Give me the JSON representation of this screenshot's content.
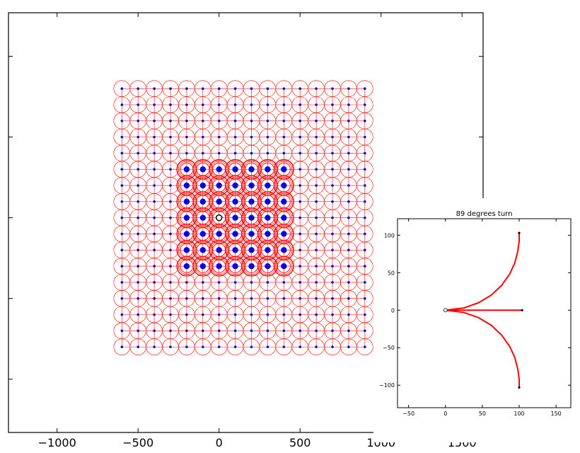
{
  "chart_data": [
    {
      "type": "line",
      "title": "",
      "xlabel": "",
      "ylabel": "",
      "xlim": [
        -1300,
        1630
      ],
      "ylim": [
        -1330,
        1270
      ],
      "xticks": [
        -1000,
        -500,
        0,
        500,
        1000,
        1500
      ],
      "xtick_labels": [
        "−1000",
        "−500",
        "0",
        "500",
        "1000",
        "1500"
      ],
      "yticks": [
        -1000,
        -500,
        0,
        500,
        1000
      ],
      "ytick_labels": [
        "",
        "",
        "",
        "",
        ""
      ],
      "grid": false,
      "origin": [
        0,
        0
      ],
      "lattice": {
        "outer": {
          "x": [
            -600,
            900
          ],
          "y": [
            -800,
            800
          ],
          "step": 100
        },
        "inner": {
          "x": [
            -200,
            400
          ],
          "y": [
            -300,
            300
          ],
          "step": 100
        }
      },
      "colors": {
        "path": "#ff0000",
        "node": "#0000ff",
        "origin": "#ffffff"
      }
    },
    {
      "type": "line",
      "title": "89 degrees turn",
      "xlabel": "",
      "ylabel": "",
      "xlim": [
        -65,
        170
      ],
      "ylim": [
        -130,
        122
      ],
      "xticks": [
        -50,
        0,
        50,
        100,
        150
      ],
      "xtick_labels": [
        "−50",
        "0",
        "50",
        "100",
        "150"
      ],
      "yticks": [
        -100,
        -50,
        0,
        50,
        100
      ],
      "ytick_labels": [
        "−100",
        "−50",
        "0",
        "50",
        "100"
      ],
      "grid": false,
      "start": [
        0,
        0
      ],
      "series": [
        {
          "x": [
            0,
            25,
            45,
            62,
            76,
            87,
            94,
            98,
            100,
            100
          ],
          "y": [
            0,
            3,
            10,
            20,
            33,
            48,
            63,
            78,
            92,
            103
          ]
        },
        {
          "x": [
            0,
            20,
            40,
            60,
            80,
            100,
            104
          ],
          "y": [
            0,
            0,
            0,
            0,
            0,
            0,
            0
          ]
        },
        {
          "x": [
            0,
            25,
            45,
            62,
            76,
            87,
            94,
            98,
            100,
            100
          ],
          "y": [
            0,
            -3,
            -10,
            -20,
            -33,
            -48,
            -63,
            -78,
            -92,
            -103
          ]
        }
      ],
      "colors": {
        "path": "#ff0000",
        "node": "#000000"
      }
    }
  ]
}
